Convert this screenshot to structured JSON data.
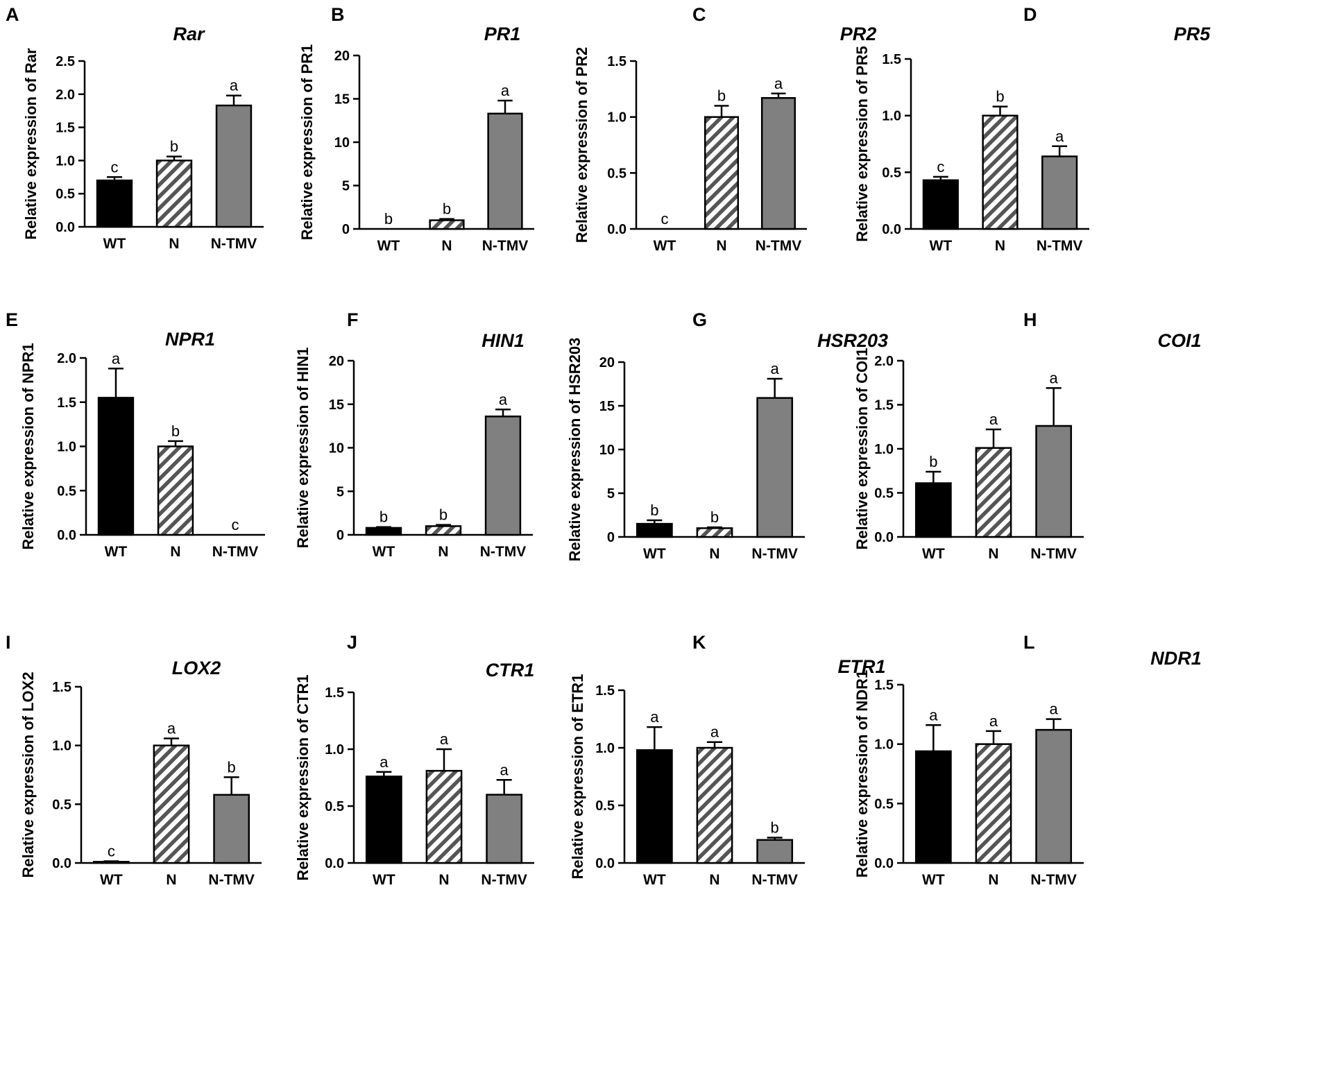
{
  "figure": {
    "bar_colors": {
      "WT": "#000000",
      "N": "hatch",
      "N-TMV": "#808080"
    },
    "hatch_color": "#555555"
  },
  "chart_data": [
    {
      "panel": "A",
      "type": "bar",
      "title": "Rar",
      "ylabel": "Relative expression of Rar",
      "categories": [
        "WT",
        "N",
        "N-TMV"
      ],
      "values": [
        0.7,
        1.0,
        1.83
      ],
      "errors": [
        0.05,
        0.06,
        0.15
      ],
      "letters": [
        "c",
        "b",
        "a"
      ],
      "ylim": [
        0,
        2.5
      ],
      "yticks": [
        "0.0",
        "0.5",
        "1.0",
        "1.5",
        "2.0",
        "2.5"
      ]
    },
    {
      "panel": "B",
      "type": "bar",
      "title": "PR1",
      "ylabel": "Relative expression of PR1",
      "categories": [
        "WT",
        "N",
        "N-TMV"
      ],
      "values": [
        0.0,
        1.0,
        13.3
      ],
      "errors": [
        0,
        0.15,
        1.5
      ],
      "letters": [
        "b",
        "b",
        "a"
      ],
      "ylim": [
        0,
        20
      ],
      "yticks": [
        "0",
        "5",
        "10",
        "15",
        "20"
      ]
    },
    {
      "panel": "C",
      "type": "bar",
      "title": "PR2",
      "ylabel": "Relative expression of PR2",
      "categories": [
        "WT",
        "N",
        "N-TMV"
      ],
      "values": [
        0.0,
        1.0,
        1.17
      ],
      "errors": [
        0,
        0.1,
        0.04
      ],
      "letters": [
        "c",
        "b",
        "a"
      ],
      "ylim": [
        0,
        1.5
      ],
      "yticks": [
        "0.0",
        "0.5",
        "1.0",
        "1.5"
      ]
    },
    {
      "panel": "D",
      "type": "bar",
      "title": "PR5",
      "ylabel": "Relative expression of PR5",
      "categories": [
        "WT",
        "N",
        "N-TMV"
      ],
      "values": [
        0.43,
        1.0,
        0.64
      ],
      "errors": [
        0.03,
        0.08,
        0.09
      ],
      "letters": [
        "c",
        "b",
        "a"
      ],
      "ylim": [
        0,
        1.5
      ],
      "yticks": [
        "0.0",
        "0.5",
        "1.0",
        "1.5"
      ]
    },
    {
      "panel": "E",
      "type": "bar",
      "title": "NPR1",
      "ylabel": "Relative expression of NPR1",
      "categories": [
        "WT",
        "N",
        "N-TMV"
      ],
      "values": [
        1.55,
        1.0,
        0.0
      ],
      "errors": [
        0.33,
        0.06,
        0
      ],
      "letters": [
        "a",
        "b",
        "c"
      ],
      "ylim": [
        0,
        2.0
      ],
      "yticks": [
        "0.0",
        "0.5",
        "1.0",
        "1.5",
        "2.0"
      ]
    },
    {
      "panel": "F",
      "type": "bar",
      "title": "HIN1",
      "ylabel": "Relative expression of HIN1",
      "categories": [
        "WT",
        "N",
        "N-TMV"
      ],
      "values": [
        0.8,
        1.0,
        13.6
      ],
      "errors": [
        0.1,
        0.15,
        0.8
      ],
      "letters": [
        "b",
        "b",
        "a"
      ],
      "ylim": [
        0,
        20
      ],
      "yticks": [
        "0",
        "5",
        "10",
        "15",
        "20"
      ]
    },
    {
      "panel": "G",
      "type": "bar",
      "title": "HSR203",
      "ylabel": "Relative expression of HSR203",
      "categories": [
        "WT",
        "N",
        "N-TMV"
      ],
      "values": [
        1.5,
        1.0,
        15.9
      ],
      "errors": [
        0.4,
        0.1,
        2.2
      ],
      "letters": [
        "b",
        "b",
        "a"
      ],
      "ylim": [
        0,
        20
      ],
      "yticks": [
        "0",
        "5",
        "10",
        "15",
        "20"
      ]
    },
    {
      "panel": "H",
      "type": "bar",
      "title": "COI1",
      "ylabel": "Relative expression of COI1",
      "categories": [
        "WT",
        "N",
        "N-TMV"
      ],
      "values": [
        0.61,
        1.01,
        1.26
      ],
      "errors": [
        0.13,
        0.21,
        0.43
      ],
      "letters": [
        "b",
        "a",
        "a"
      ],
      "ylim": [
        0,
        2.0
      ],
      "yticks": [
        "0.0",
        "0.5",
        "1.0",
        "1.5",
        "2.0"
      ]
    },
    {
      "panel": "I",
      "type": "bar",
      "title": "LOX2",
      "ylabel": "Relative expression of LOX2",
      "categories": [
        "WT",
        "N",
        "N-TMV"
      ],
      "values": [
        0.01,
        1.0,
        0.58
      ],
      "errors": [
        0.005,
        0.06,
        0.15
      ],
      "letters": [
        "c",
        "a",
        "b"
      ],
      "ylim": [
        0,
        1.5
      ],
      "yticks": [
        "0.0",
        "0.5",
        "1.0",
        "1.5"
      ]
    },
    {
      "panel": "J",
      "type": "bar",
      "title": "CTR1",
      "ylabel": "Relative expression of CTR1",
      "categories": [
        "WT",
        "N",
        "N-TMV"
      ],
      "values": [
        0.76,
        0.81,
        0.6
      ],
      "errors": [
        0.04,
        0.19,
        0.13
      ],
      "letters": [
        "a",
        "a",
        "a"
      ],
      "ylim": [
        0,
        1.5
      ],
      "yticks": [
        "0.0",
        "0.5",
        "1.0",
        "1.5"
      ]
    },
    {
      "panel": "K",
      "type": "bar",
      "title": "ETR1",
      "ylabel": "Relative expression of ETR1",
      "categories": [
        "WT",
        "N",
        "N-TMV"
      ],
      "values": [
        0.98,
        1.0,
        0.2
      ],
      "errors": [
        0.2,
        0.05,
        0.02
      ],
      "letters": [
        "a",
        "a",
        "b"
      ],
      "ylim": [
        0,
        1.5
      ],
      "yticks": [
        "0.0",
        "0.5",
        "1.0",
        "1.5"
      ]
    },
    {
      "panel": "L",
      "type": "bar",
      "title": "NDR1",
      "ylabel": "Relative expression of NDR1",
      "categories": [
        "WT",
        "N",
        "N-TMV"
      ],
      "values": [
        0.94,
        1.0,
        1.12
      ],
      "errors": [
        0.22,
        0.11,
        0.09
      ],
      "letters": [
        "a",
        "a",
        "a"
      ],
      "ylim": [
        0,
        1.5
      ],
      "yticks": [
        "0.0",
        "0.5",
        "1.0",
        "1.5"
      ]
    }
  ]
}
